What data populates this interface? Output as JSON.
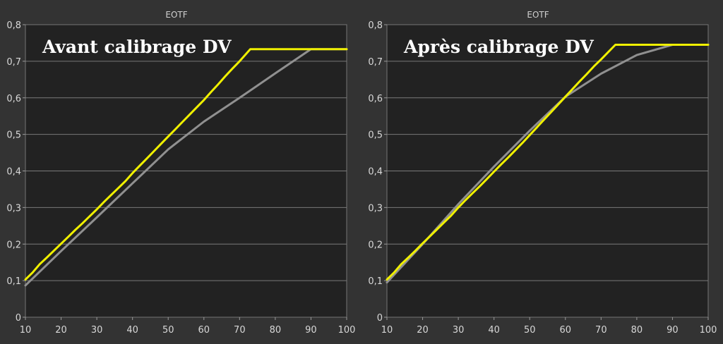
{
  "chart_data": [
    {
      "type": "line",
      "title": "EOTF",
      "annotation": "Avant calibrage DV",
      "xlim": [
        10,
        100
      ],
      "ylim": [
        0,
        0.8
      ],
      "x_ticks": [
        10,
        20,
        30,
        40,
        50,
        60,
        70,
        80,
        90,
        100
      ],
      "y_ticks": [
        0,
        0.1,
        0.2,
        0.3,
        0.4,
        0.5,
        0.6,
        0.7,
        0.8
      ],
      "x_tick_labels": [
        "10",
        "20",
        "30",
        "40",
        "50",
        "60",
        "70",
        "80",
        "90",
        "100"
      ],
      "y_tick_labels": [
        "0",
        "0,1",
        "0,2",
        "0,3",
        "0,4",
        "0,5",
        "0,6",
        "0,7",
        "0,8"
      ],
      "grid": "horizontal",
      "series": [
        {
          "color": "#f0f000",
          "x": [
            10,
            12,
            14,
            16,
            18,
            20,
            22,
            24,
            26,
            28,
            30,
            32,
            34,
            36,
            38,
            40,
            42,
            44,
            46,
            48,
            50,
            52,
            54,
            56,
            58,
            60,
            62,
            64,
            66,
            68,
            70,
            72,
            73,
            80,
            90,
            100
          ],
          "y": [
            0.103,
            0.122,
            0.145,
            0.163,
            0.182,
            0.201,
            0.22,
            0.239,
            0.257,
            0.276,
            0.295,
            0.315,
            0.334,
            0.353,
            0.372,
            0.394,
            0.414,
            0.434,
            0.454,
            0.474,
            0.494,
            0.514,
            0.534,
            0.554,
            0.574,
            0.594,
            0.616,
            0.637,
            0.659,
            0.68,
            0.7,
            0.722,
            0.733,
            0.733,
            0.733,
            0.733
          ]
        },
        {
          "color": "#909090",
          "x": [
            10,
            20,
            30,
            40,
            50,
            60,
            70,
            80,
            90,
            100
          ],
          "y": [
            0.087,
            0.181,
            0.273,
            0.366,
            0.459,
            0.535,
            0.6,
            0.667,
            0.733,
            0.733
          ]
        }
      ]
    },
    {
      "type": "line",
      "title": "EOTF",
      "annotation": "Après calibrage DV",
      "xlim": [
        10,
        100
      ],
      "ylim": [
        0,
        0.8
      ],
      "x_ticks": [
        10,
        20,
        30,
        40,
        50,
        60,
        70,
        80,
        90,
        100
      ],
      "y_ticks": [
        0,
        0.1,
        0.2,
        0.3,
        0.4,
        0.5,
        0.6,
        0.7,
        0.8
      ],
      "x_tick_labels": [
        "10",
        "20",
        "30",
        "40",
        "50",
        "60",
        "70",
        "80",
        "90",
        "100"
      ],
      "y_tick_labels": [
        "0",
        "0,1",
        "0,2",
        "0,3",
        "0,4",
        "0,5",
        "0,6",
        "0,7",
        "0,8"
      ],
      "grid": "horizontal",
      "series": [
        {
          "color": "#f0f000",
          "x": [
            10,
            12,
            14,
            16,
            18,
            20,
            22,
            24,
            26,
            28,
            30,
            32,
            34,
            36,
            38,
            40,
            42,
            44,
            46,
            48,
            50,
            52,
            54,
            56,
            58,
            60,
            62,
            64,
            66,
            68,
            70,
            72,
            74,
            75,
            80,
            90,
            100
          ],
          "y": [
            0.103,
            0.122,
            0.145,
            0.163,
            0.182,
            0.202,
            0.221,
            0.24,
            0.259,
            0.278,
            0.3,
            0.32,
            0.339,
            0.358,
            0.378,
            0.398,
            0.418,
            0.437,
            0.457,
            0.477,
            0.498,
            0.519,
            0.54,
            0.561,
            0.582,
            0.603,
            0.624,
            0.645,
            0.665,
            0.686,
            0.705,
            0.725,
            0.745,
            0.745,
            0.745,
            0.745,
            0.745
          ]
        },
        {
          "color": "#909090",
          "x": [
            10,
            20,
            30,
            40,
            50,
            60,
            70,
            80,
            90,
            100
          ],
          "y": [
            0.095,
            0.2,
            0.309,
            0.412,
            0.51,
            0.603,
            0.666,
            0.717,
            0.745,
            0.745
          ]
        }
      ]
    }
  ]
}
